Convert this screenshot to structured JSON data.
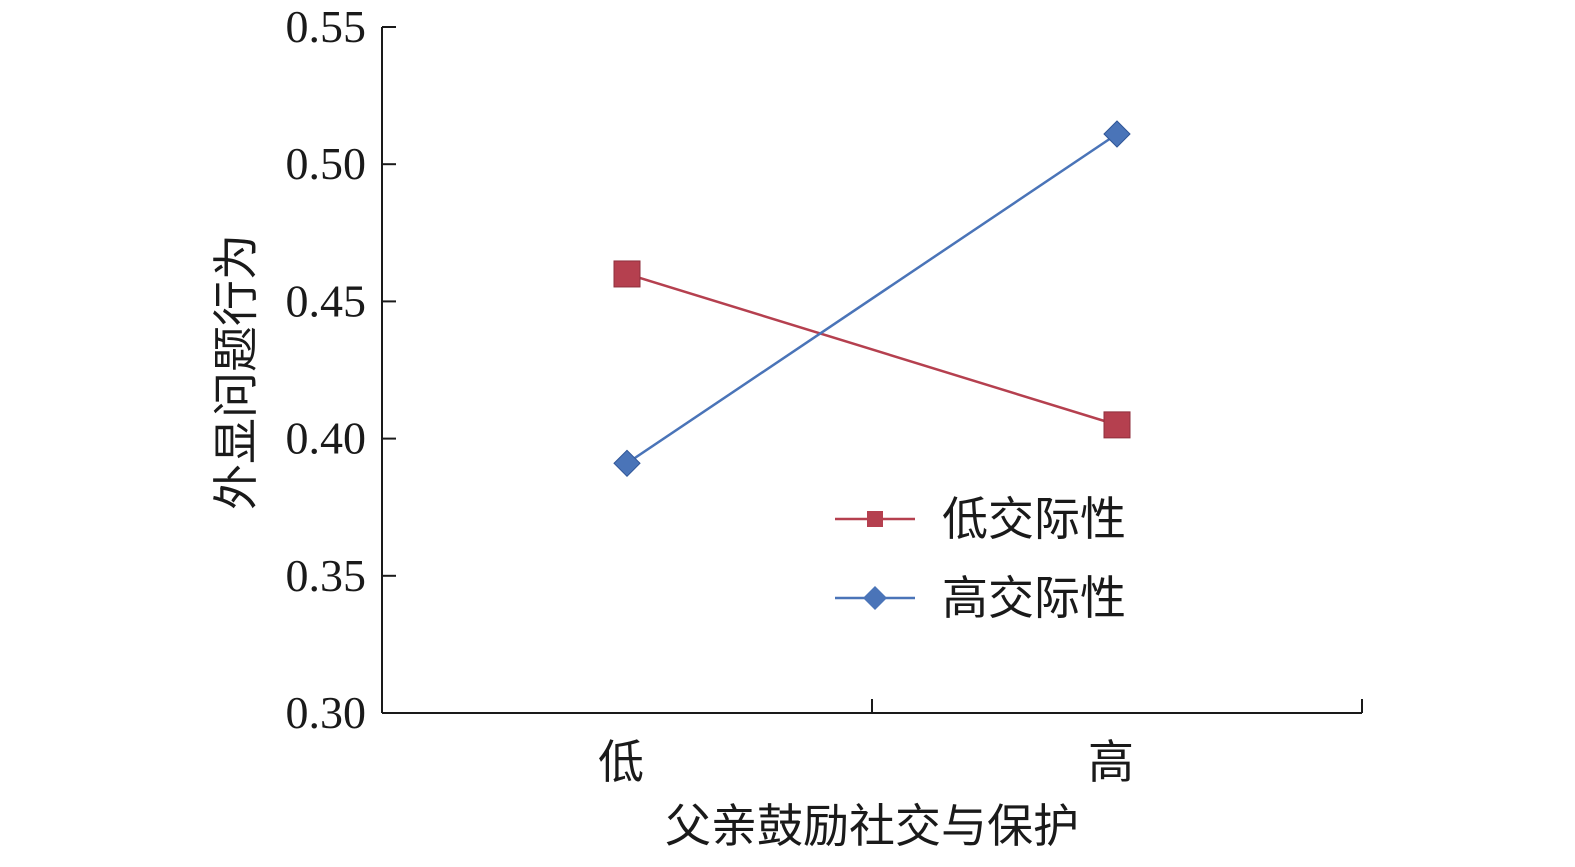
{
  "chart_data": {
    "type": "line",
    "title": "",
    "xlabel": "父亲鼓励社交与保护",
    "ylabel": "外显问题行为",
    "categories": [
      "低",
      "高"
    ],
    "ylim": [
      0.3,
      0.55
    ],
    "yticks": [
      "0.30",
      "0.35",
      "0.40",
      "0.45",
      "0.50",
      "0.55"
    ],
    "yticks_values": [
      0.3,
      0.35,
      0.4,
      0.45,
      0.5,
      0.55
    ],
    "grid": false,
    "legend_position": "inside-lower-right",
    "series": [
      {
        "name": "低交际性",
        "values": [
          0.46,
          0.405
        ],
        "color": "#b5404f",
        "marker": "square"
      },
      {
        "name": "高交际性",
        "values": [
          0.391,
          0.511
        ],
        "color": "#4a74b8",
        "marker": "diamond"
      }
    ]
  }
}
